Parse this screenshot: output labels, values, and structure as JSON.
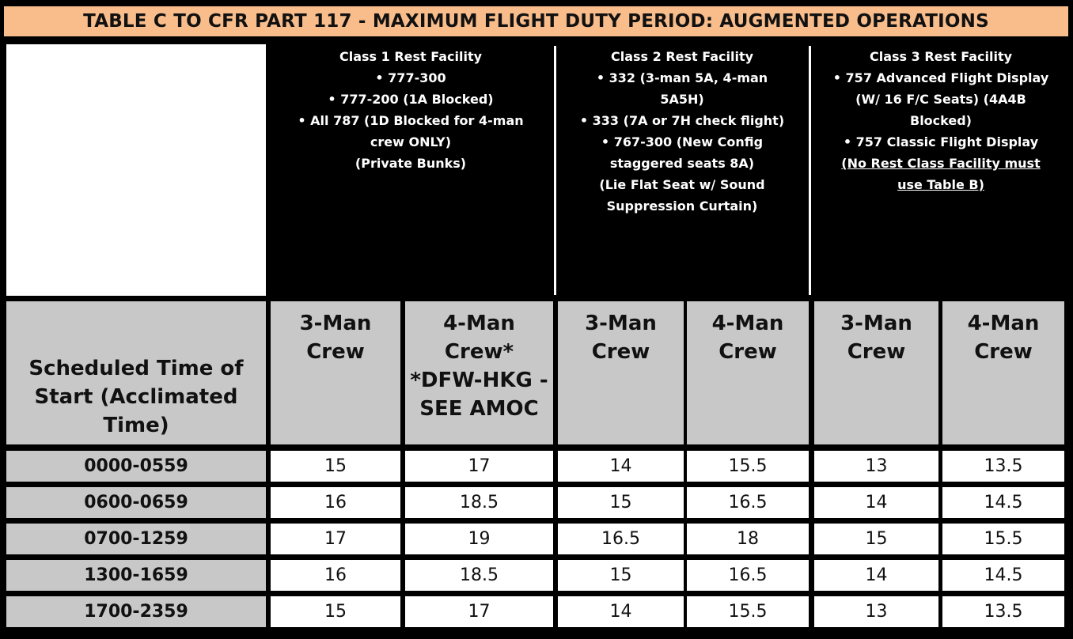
{
  "title": "TABLE C TO CFR PART 117 - MAXIMUM FLIGHT DUTY PERIOD:  AUGMENTED OPERATIONS",
  "facilities": [
    {
      "lines": [
        {
          "text": "Class 1 Rest Facility"
        },
        {
          "text": "• 777-300"
        },
        {
          "text": "• 777-200 (1A Blocked)"
        },
        {
          "text": "• All 787 (1D Blocked for 4-man"
        },
        {
          "text": "crew ONLY)"
        },
        {
          "text": "(Private Bunks)"
        }
      ]
    },
    {
      "lines": [
        {
          "text": "Class 2 Rest Facility"
        },
        {
          "text": "• 332 (3-man 5A, 4-man"
        },
        {
          "text": "5A5H)"
        },
        {
          "text": "• 333 (7A or 7H check flight)"
        },
        {
          "text": "• 767-300 (New Config"
        },
        {
          "text": "staggered seats 8A)"
        },
        {
          "text": "(Lie Flat Seat w/ Sound"
        },
        {
          "text": "Suppression Curtain)"
        }
      ]
    },
    {
      "lines": [
        {
          "text": "Class 3 Rest Facility"
        },
        {
          "text": "• 757 Advanced Flight Display"
        },
        {
          "text": "(W/ 16 F/C Seats) (4A4B"
        },
        {
          "text": "Blocked)"
        },
        {
          "text": "• 757 Classic Flight Display"
        },
        {
          "text": "(No Rest Class Facility must",
          "underline": true
        },
        {
          "text": "use Table B)",
          "underline": true
        }
      ]
    }
  ],
  "header": {
    "schedule_lines": [
      "Scheduled Time of",
      "Start (Acclimated",
      "Time)"
    ],
    "crew_columns": [
      [
        "3-Man",
        "Crew"
      ],
      [
        "4-Man",
        "Crew*",
        "*DFW-HKG -",
        "SEE AMOC"
      ],
      [
        "3-Man",
        "Crew"
      ],
      [
        "4-Man",
        "Crew"
      ],
      [
        "3-Man",
        "Crew"
      ],
      [
        "4-Man",
        "Crew"
      ]
    ]
  },
  "rows": [
    {
      "time": "0000-0559",
      "values": [
        "15",
        "17",
        "14",
        "15.5",
        "13",
        "13.5"
      ]
    },
    {
      "time": "0600-0659",
      "values": [
        "16",
        "18.5",
        "15",
        "16.5",
        "14",
        "14.5"
      ]
    },
    {
      "time": "0700-1259",
      "values": [
        "17",
        "19",
        "16.5",
        "18",
        "15",
        "15.5"
      ]
    },
    {
      "time": "1300-1659",
      "values": [
        "16",
        "18.5",
        "15",
        "16.5",
        "14",
        "14.5"
      ]
    },
    {
      "time": "1700-2359",
      "values": [
        "15",
        "17",
        "14",
        "15.5",
        "13",
        "13.5"
      ]
    }
  ]
}
